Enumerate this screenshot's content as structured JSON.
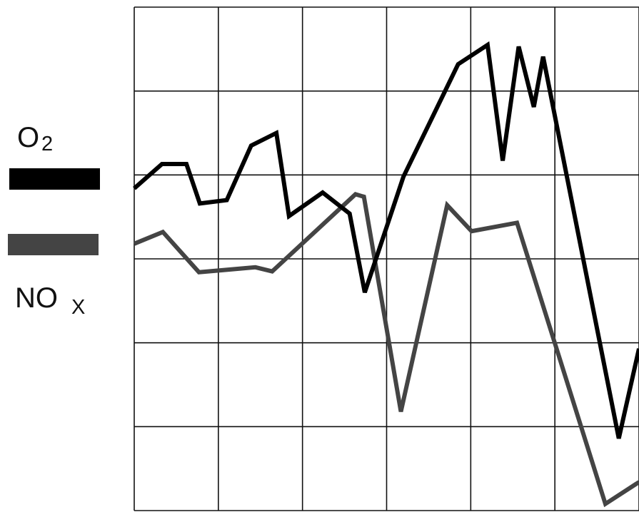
{
  "chart_data": {
    "type": "line",
    "grid": true,
    "axes_labels_shown": false,
    "legend_placement": "left",
    "x_divisions": 6,
    "y_divisions": 6,
    "xlim": [
      0,
      6
    ],
    "ylim": [
      0,
      6
    ],
    "series": [
      {
        "name": "O2",
        "legend_text": "O",
        "legend_subscript": "2",
        "color": "#000000",
        "x": [
          0.0,
          0.33,
          0.62,
          0.78,
          1.1,
          1.39,
          1.69,
          1.84,
          2.24,
          2.56,
          2.74,
          3.2,
          3.85,
          4.2,
          4.38,
          4.57,
          4.75,
          4.86,
          5.76,
          6.0
        ],
        "y": [
          3.84,
          4.13,
          4.13,
          3.66,
          3.7,
          4.35,
          4.5,
          3.51,
          3.79,
          3.54,
          2.6,
          3.98,
          5.32,
          5.55,
          4.17,
          5.53,
          4.81,
          5.41,
          0.86,
          1.93
        ]
      },
      {
        "name": "NOx",
        "legend_text": "NO",
        "legend_subscript": "X",
        "color": "#444444",
        "x": [
          0.0,
          0.34,
          0.77,
          1.44,
          1.64,
          2.63,
          2.73,
          3.17,
          3.72,
          4.01,
          4.55,
          5.6,
          6.0
        ],
        "y": [
          3.18,
          3.32,
          2.84,
          2.9,
          2.85,
          3.77,
          3.74,
          1.18,
          3.64,
          3.33,
          3.43,
          0.08,
          0.34
        ]
      }
    ]
  }
}
